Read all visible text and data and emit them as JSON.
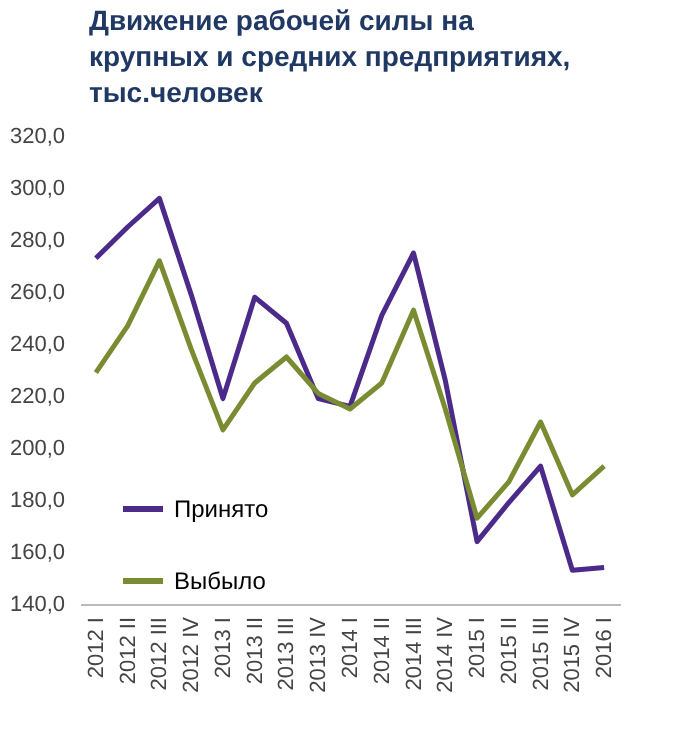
{
  "chart_data": {
    "type": "line",
    "title": "Движение рабочей силы на крупных и средних предприятиях, тыс.человек",
    "categories": [
      "2012 I",
      "2012 II",
      "2012 III",
      "2012 IV",
      "2013 I",
      "2013 II",
      "2013 III",
      "2013 IV",
      "2014 I",
      "2014 II",
      "2014 III",
      "2014 IV",
      "2015 I",
      "2015 II",
      "2015 III",
      "2015 IV",
      "2016 I"
    ],
    "series": [
      {
        "name": "Принято",
        "color": "#4b2a8a",
        "values": [
          273,
          285,
          296,
          259,
          219,
          258,
          248,
          219,
          216,
          251,
          275,
          226,
          164,
          179,
          193,
          153,
          154
        ]
      },
      {
        "name": "Выбыло",
        "color": "#7a8c32",
        "values": [
          229,
          247,
          272,
          238,
          207,
          225,
          235,
          221,
          215,
          225,
          253,
          215,
          173,
          187,
          210,
          182,
          193
        ]
      }
    ],
    "ylim": [
      140,
      320
    ],
    "yticks": [
      {
        "value": 140,
        "label": "140,0"
      },
      {
        "value": 160,
        "label": "160,0"
      },
      {
        "value": 180,
        "label": "180,0"
      },
      {
        "value": 200,
        "label": "200,0"
      },
      {
        "value": 220,
        "label": "220,0"
      },
      {
        "value": 240,
        "label": "240,0"
      },
      {
        "value": 260,
        "label": "260,0"
      },
      {
        "value": 280,
        "label": "280,0"
      },
      {
        "value": 300,
        "label": "300,0"
      },
      {
        "value": 320,
        "label": "320,0"
      }
    ],
    "grid": false,
    "legend": "bottom left",
    "line_style": "solid",
    "marker": "none"
  }
}
